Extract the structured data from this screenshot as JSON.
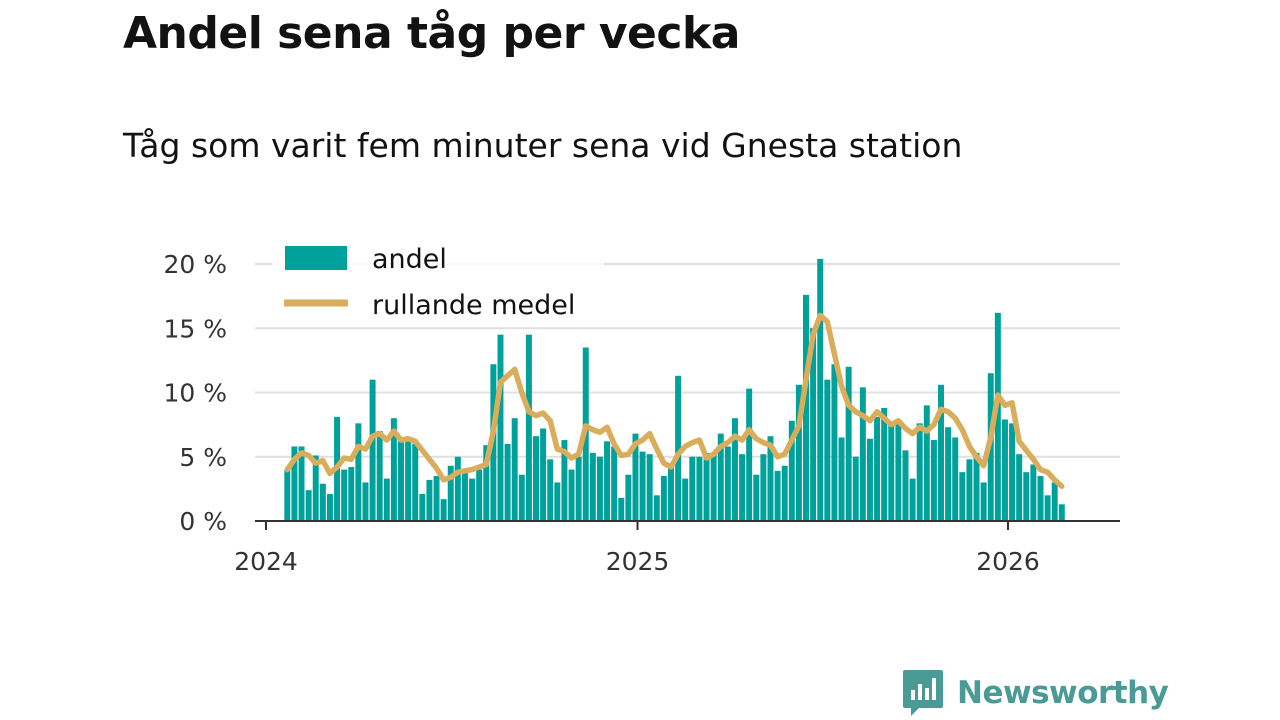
{
  "header": {
    "title": "Andel sena tåg per vecka",
    "subtitle": "Tåg som varit fem minuter sena vid Gnesta station"
  },
  "brand": {
    "name": "Newsworthy"
  },
  "colors": {
    "bar": "#00a19a",
    "line": "#d9ad5c",
    "axis": "#333333",
    "grid": "#e0e0e0",
    "brand": "#4a9a96"
  },
  "chart_data": {
    "type": "bar",
    "y_format": "percent",
    "ylim": [
      0,
      22
    ],
    "y_ticks": [
      0,
      5,
      10,
      15,
      20
    ],
    "y_tick_labels": [
      "0 %",
      "5 %",
      "10 %",
      "15 %",
      "20 %"
    ],
    "x_ticks": [
      "2024-01-01",
      "2025-01-01",
      "2026-01-01"
    ],
    "x_tick_labels": [
      "2024",
      "2025",
      "2026"
    ],
    "x_range": [
      "2024-01-01",
      "2026-04-01"
    ],
    "grid": true,
    "legend": {
      "placement": "top-left",
      "entries": [
        "andel",
        "rullande medel"
      ]
    },
    "series": [
      {
        "name": "andel",
        "type": "bar",
        "start_week": "2024-01-22",
        "values": [
          4.0,
          5.8,
          5.8,
          2.4,
          5.1,
          2.9,
          2.1,
          8.1,
          4.0,
          4.2,
          7.6,
          3.0,
          11.0,
          7.0,
          3.3,
          8.0,
          6.2,
          6.5,
          6.0,
          2.1,
          3.2,
          3.5,
          1.7,
          4.3,
          5.0,
          4.0,
          3.3,
          4.0,
          5.9,
          12.2,
          14.5,
          6.0,
          8.0,
          3.6,
          14.5,
          6.6,
          7.2,
          4.8,
          3.0,
          6.3,
          4.0,
          5.0,
          13.5,
          5.3,
          5.0,
          6.2,
          5.8,
          1.8,
          3.6,
          6.8,
          5.4,
          5.2,
          2.0,
          3.5,
          4.5,
          11.3,
          3.3,
          5.0,
          5.0,
          5.3,
          5.2,
          6.8,
          5.8,
          8.0,
          5.2,
          10.3,
          3.6,
          5.2,
          6.6,
          3.9,
          4.3,
          7.8,
          10.6,
          17.6,
          15.0,
          20.4,
          11.0,
          12.2,
          6.5,
          12.0,
          5.0,
          10.4,
          6.4,
          8.1,
          8.8,
          7.7,
          7.8,
          5.5,
          3.3,
          7.6,
          9.0,
          6.3,
          10.6,
          7.3,
          6.5,
          3.8,
          4.8,
          5.3,
          3.0,
          11.5,
          16.2,
          7.9,
          7.6,
          5.2,
          3.8,
          4.4,
          3.5,
          2.0,
          3.0,
          1.3
        ]
      },
      {
        "name": "rullande medel",
        "type": "line",
        "start_week": "2024-01-22",
        "values": [
          4.0,
          4.8,
          5.3,
          5.1,
          4.5,
          4.7,
          3.7,
          4.2,
          4.9,
          4.8,
          5.8,
          5.6,
          6.6,
          6.8,
          6.3,
          7.0,
          6.3,
          6.4,
          6.2,
          5.5,
          4.8,
          4.1,
          3.2,
          3.4,
          3.8,
          3.9,
          4.0,
          4.2,
          4.4,
          7.0,
          10.8,
          11.3,
          11.8,
          10.0,
          8.5,
          8.2,
          8.4,
          7.8,
          5.6,
          5.4,
          4.9,
          5.2,
          7.4,
          7.1,
          6.9,
          7.3,
          6.0,
          5.1,
          5.2,
          6.0,
          6.3,
          6.8,
          5.6,
          4.5,
          4.2,
          5.2,
          5.8,
          6.1,
          6.3,
          4.9,
          5.2,
          5.8,
          6.1,
          6.6,
          6.3,
          7.1,
          6.4,
          6.1,
          5.9,
          5.0,
          5.2,
          6.3,
          7.4,
          11.0,
          14.5,
          16.0,
          15.5,
          13.0,
          10.5,
          9.0,
          8.5,
          8.2,
          7.8,
          8.5,
          8.0,
          7.5,
          7.8,
          7.2,
          6.8,
          7.3,
          7.0,
          7.5,
          8.7,
          8.5,
          8.0,
          7.1,
          5.8,
          5.0,
          4.3,
          6.5,
          9.8,
          9.0,
          9.2,
          6.2,
          5.5,
          4.8,
          4.0,
          3.8,
          3.2,
          2.7
        ]
      }
    ]
  }
}
